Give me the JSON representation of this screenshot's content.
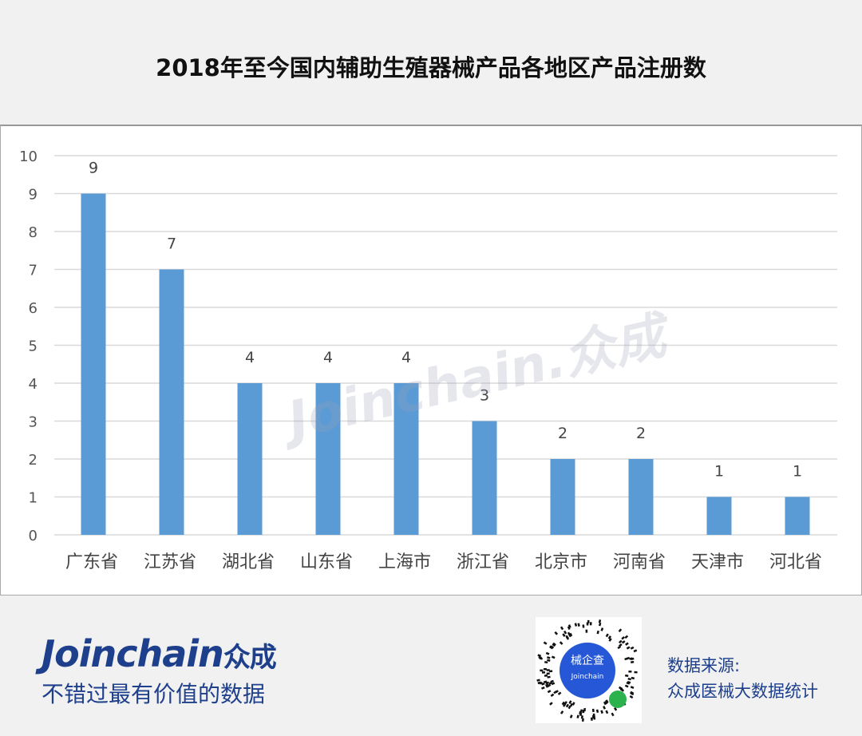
{
  "title": "2018年至今国内辅助生殖器械产品各地区产品注册数",
  "watermark": "Joinchain.众成",
  "footer": {
    "logo_en": "Joinchain",
    "logo_cn": "众成",
    "slogan": "不错过最有价值的数据",
    "qr_label": "械企查",
    "qr_sublabel": "Joinchain",
    "source_label": "数据来源:",
    "source_value": "众成医械大数据统计"
  },
  "colors": {
    "bar": "#5b9bd5",
    "grid": "#d9d9d9",
    "brand": "#1d3f8c"
  },
  "chart_data": {
    "type": "bar",
    "title": "",
    "xlabel": "",
    "ylabel": "",
    "categories": [
      "广东省",
      "江苏省",
      "湖北省",
      "山东省",
      "上海市",
      "浙江省",
      "北京市",
      "河南省",
      "天津市",
      "河北省"
    ],
    "values": [
      9,
      7,
      4,
      4,
      4,
      3,
      2,
      2,
      1,
      1
    ],
    "ylim": [
      0,
      10
    ],
    "yticks": [
      0,
      1,
      2,
      3,
      4,
      5,
      6,
      7,
      8,
      9,
      10
    ],
    "grid": true,
    "data_labels": true,
    "legend": "none"
  }
}
